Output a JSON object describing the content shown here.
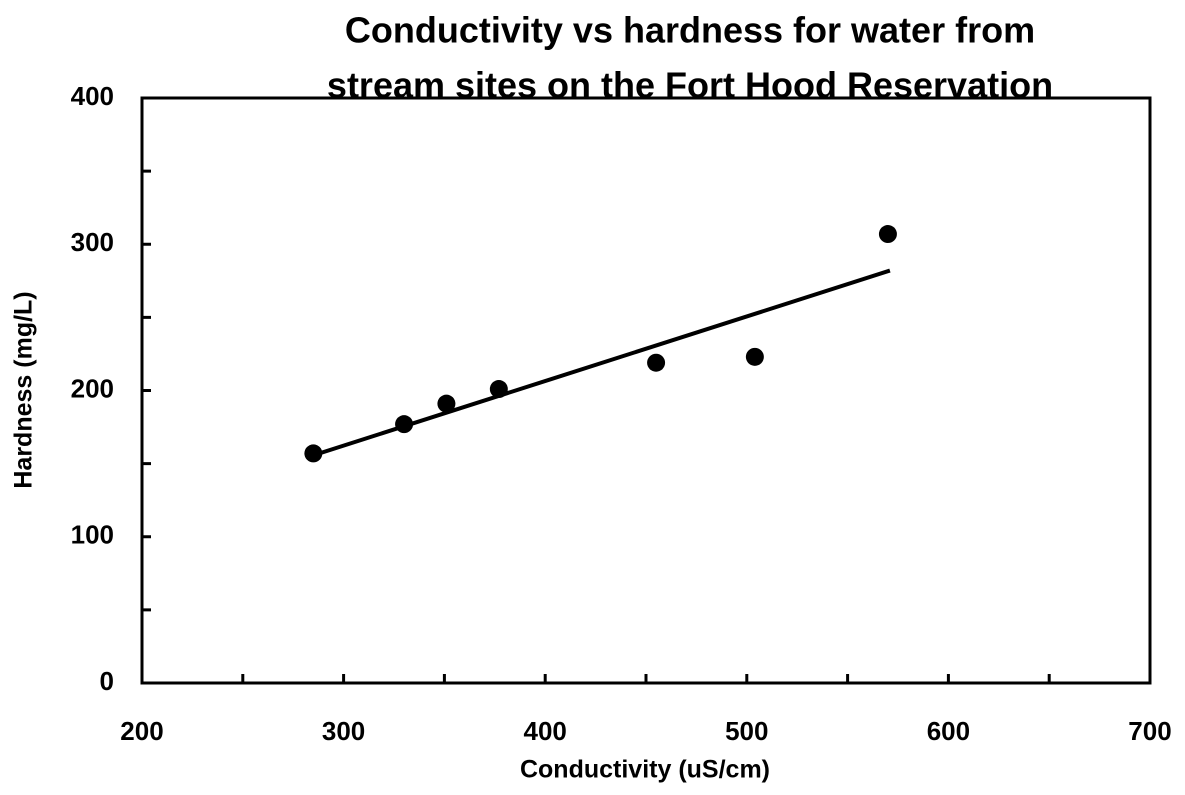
{
  "chart_data": {
    "type": "scatter",
    "title": [
      "Conductivity vs hardness for water from",
      "stream sites on the Fort Hood Reservation"
    ],
    "x_label": "Conductivity (uS/cm)",
    "y_label": "Hardness (mg/L)",
    "x": [
      285,
      330,
      351,
      377,
      455,
      504,
      570
    ],
    "values": [
      157,
      177,
      191,
      201,
      219,
      223,
      307
    ],
    "color": "#000000",
    "trendline": {
      "x": [
        288,
        571
      ],
      "values": [
        157,
        282
      ]
    },
    "xlim": [
      200,
      700
    ],
    "xticks": [
      200,
      300,
      400,
      500,
      600,
      700
    ],
    "xminorticks": [
      250,
      350,
      450,
      550,
      650
    ],
    "ylim": [
      0,
      400
    ],
    "yticks": [
      0,
      100,
      200,
      300,
      400
    ],
    "yminorticks": [
      50,
      150,
      250,
      350
    ]
  }
}
